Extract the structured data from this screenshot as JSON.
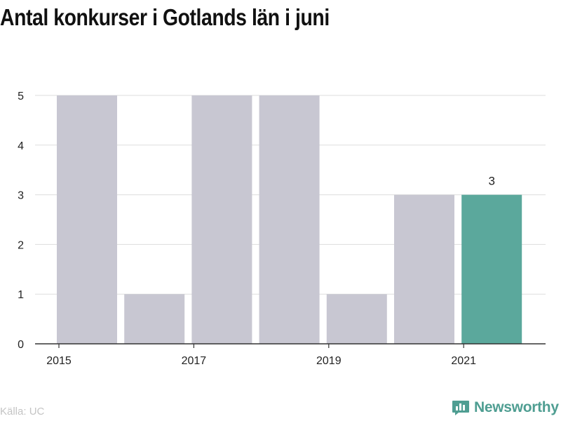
{
  "title": "Antal konkurser i Gotlands län i juni",
  "source": "Källa: UC",
  "brand": {
    "name": "Newsworthy",
    "icon": "newsworthy-logo-icon",
    "color": "#4f9e92"
  },
  "colors": {
    "bar_default": "#c8c7d2",
    "bar_highlight": "#5ba89c",
    "grid": "#dddddd",
    "axis": "#333333",
    "text": "#222222"
  },
  "chart_data": {
    "type": "bar",
    "categories": [
      "2015",
      "2016",
      "2017",
      "2018",
      "2019",
      "2020",
      "2021"
    ],
    "values": [
      5,
      1,
      5,
      5,
      1,
      3,
      3
    ],
    "highlight_index": 6,
    "data_labels": [
      {
        "index": 6,
        "text": "3"
      }
    ],
    "x_tick_labels": [
      "2015",
      "2017",
      "2019",
      "2021"
    ],
    "y_ticks": [
      0,
      1,
      2,
      3,
      4,
      5
    ],
    "ylim": [
      0,
      5
    ],
    "grid": true,
    "title": "Antal konkurser i Gotlands län i juni",
    "xlabel": "",
    "ylabel": ""
  }
}
